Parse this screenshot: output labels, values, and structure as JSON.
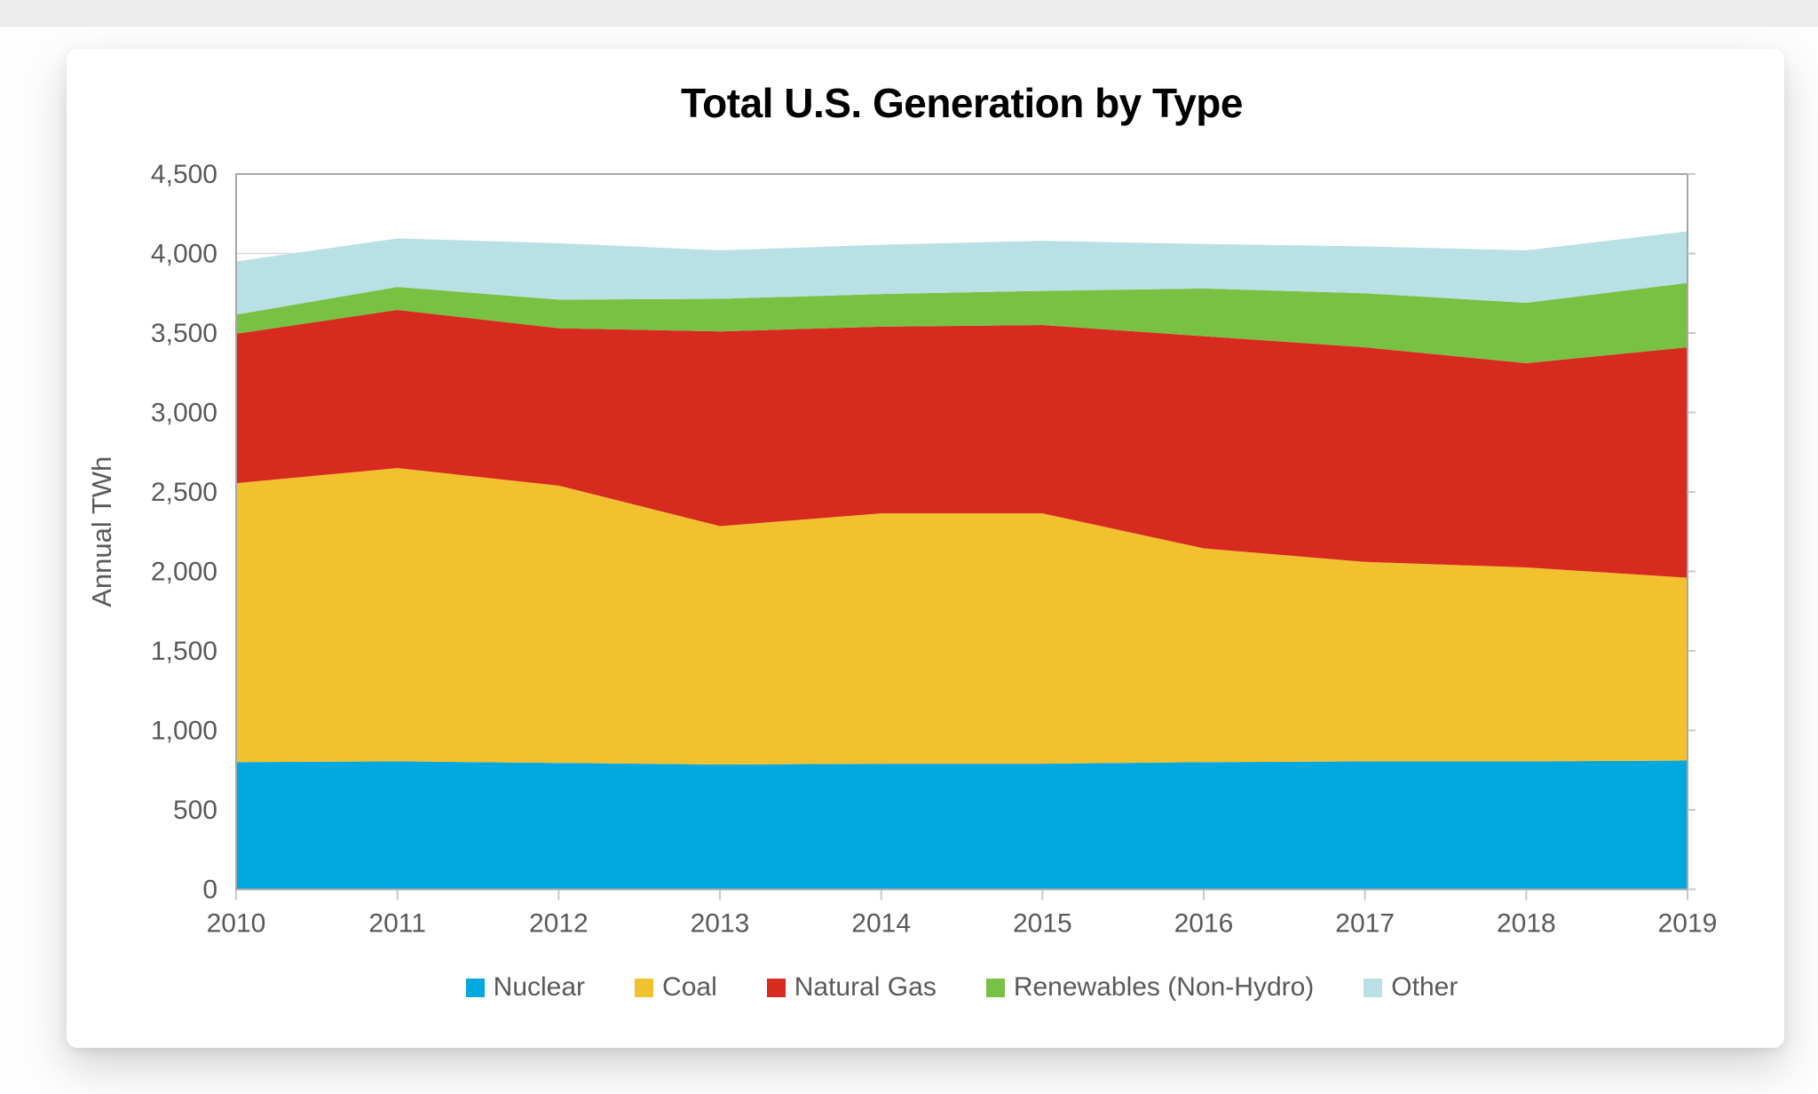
{
  "chart_data": {
    "type": "area",
    "stacked": true,
    "title": "Total U.S. Generation by Type",
    "ylabel": "Annual TWh",
    "xlabel": "",
    "ylim": [
      0,
      4500
    ],
    "ytick_step": 500,
    "grid": "horizontal",
    "legend_position": "bottom",
    "x": [
      "2010",
      "2011",
      "2012",
      "2013",
      "2014",
      "2015",
      "2016",
      "2017",
      "2018",
      "2019"
    ],
    "series": [
      {
        "name": "Nuclear",
        "color": "#00A8E0",
        "values": [
          800,
          805,
          795,
          785,
          790,
          790,
          800,
          805,
          805,
          810
        ]
      },
      {
        "name": "Coal",
        "color": "#F2C12E",
        "values": [
          1755,
          1845,
          1745,
          1500,
          1575,
          1575,
          1345,
          1255,
          1220,
          1150
        ]
      },
      {
        "name": "Natural Gas",
        "color": "#D62B1E",
        "values": [
          940,
          995,
          990,
          1225,
          1175,
          1185,
          1335,
          1350,
          1285,
          1450
        ]
      },
      {
        "name": "Renewables (Non-Hydro)",
        "color": "#79C143",
        "values": [
          120,
          145,
          180,
          205,
          205,
          215,
          300,
          340,
          380,
          405
        ]
      },
      {
        "name": "Other",
        "color": "#B9E0E5",
        "values": [
          335,
          305,
          355,
          305,
          310,
          315,
          280,
          295,
          330,
          325
        ]
      }
    ],
    "stack_totals": [
      3950,
      4095,
      4065,
      4020,
      4055,
      4080,
      4060,
      4045,
      4020,
      4140
    ],
    "y_tick_labels": [
      "0",
      "500",
      "1,000",
      "1,500",
      "2,000",
      "2,500",
      "3,000",
      "3,500",
      "4,000",
      "4,500"
    ]
  },
  "style_colors": {
    "axis_text": "#595959",
    "frame": "#A6A6A6",
    "gridline": "#D9D9D9",
    "tick": "#C9C9C9",
    "title_text": "#000000",
    "card_background": "#FFFFFF",
    "page_background": "#FDFDFD"
  }
}
